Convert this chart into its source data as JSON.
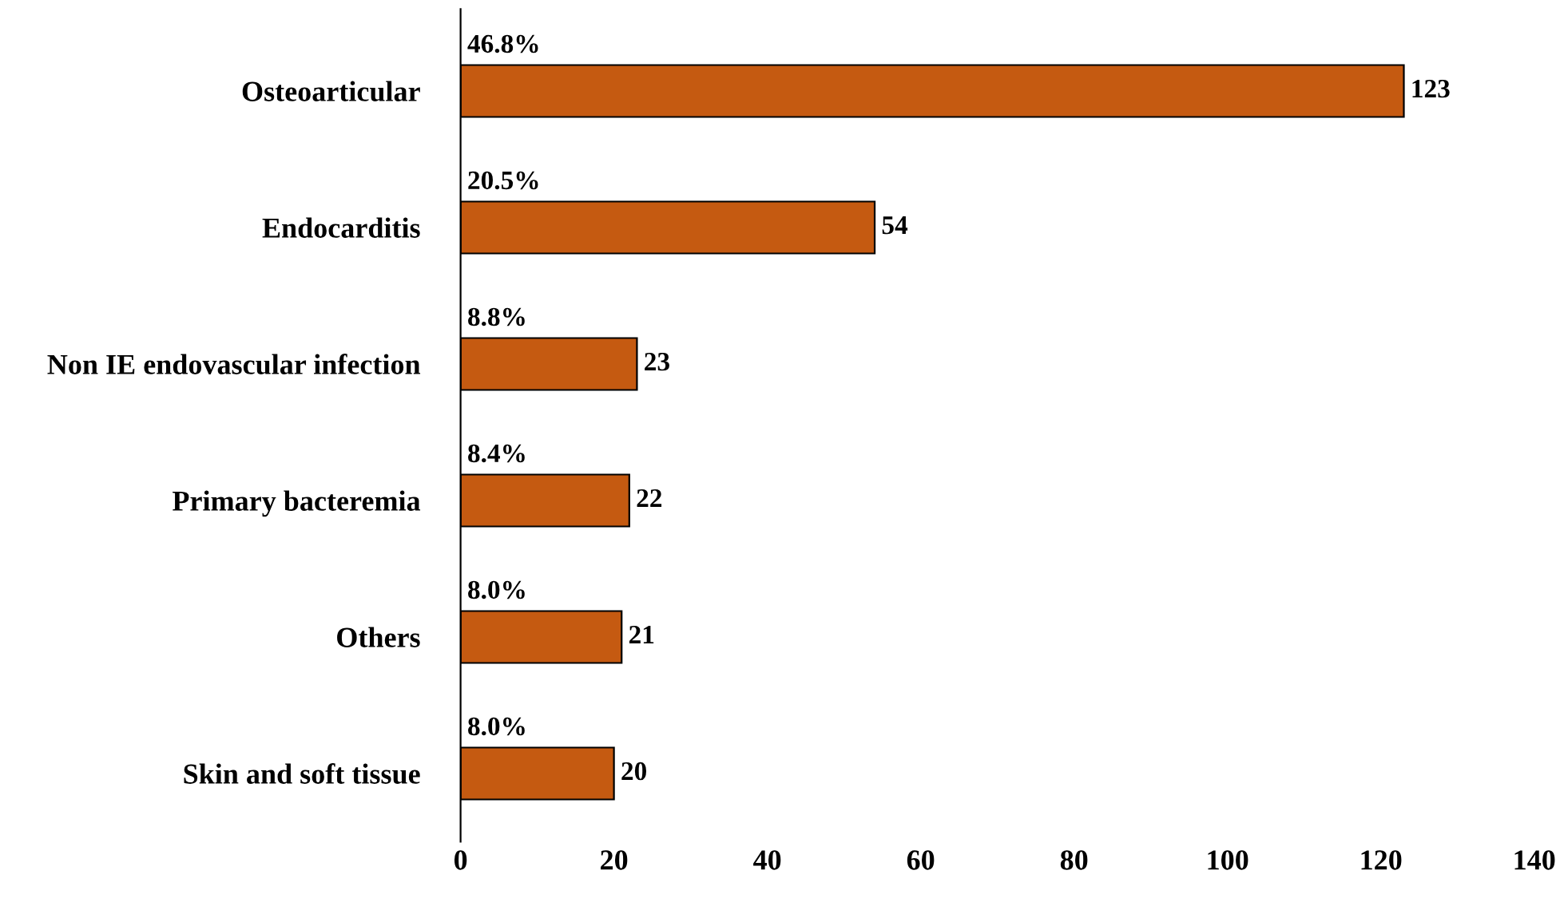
{
  "chart_data": {
    "type": "bar",
    "orientation": "horizontal",
    "categories": [
      "Osteoarticular",
      "Endocarditis",
      "Non IE endovascular infection",
      "Primary bacteremia",
      "Others",
      "Skin and soft tissue"
    ],
    "values": [
      123,
      54,
      23,
      22,
      21,
      20
    ],
    "color": "#c55a11",
    "data_labels": true,
    "xlim": [
      0,
      140
    ],
    "xticks": [
      0,
      20,
      40,
      60,
      80,
      100,
      120,
      140
    ],
    "grid": false,
    "legend": false,
    "annotations": [
      "46.8%",
      "20.5%",
      "8.8%",
      "8.4%",
      "8.0%",
      "8.0%"
    ]
  }
}
